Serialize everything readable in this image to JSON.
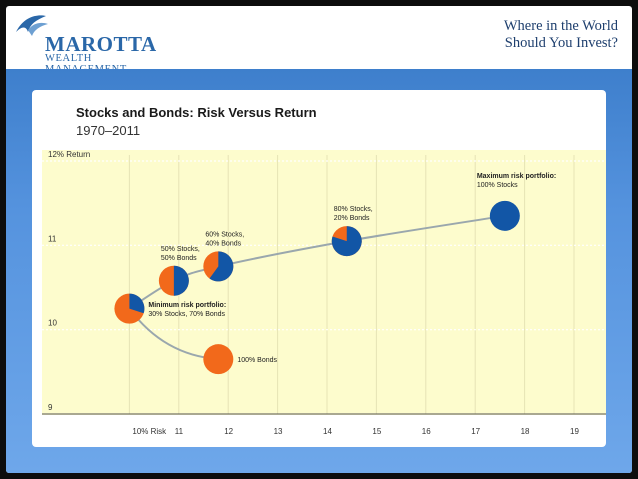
{
  "header": {
    "brand": "MAROTTA",
    "brand_sub": "WEALTH MANAGEMENT",
    "headline_line1": "Where in the World",
    "headline_line2": "Should You Invest?"
  },
  "colors": {
    "stocks": "#1256a6",
    "bonds": "#f2691b",
    "plot_bg": "#fdfccd",
    "curve": "#9aa7ad",
    "brand": "#2a67a8"
  },
  "chart_data": {
    "type": "scatter",
    "title": "Stocks and Bonds: Risk Versus Return",
    "subtitle": "1970–2011",
    "xlim": [
      9,
      19
    ],
    "ylim": [
      9,
      12
    ],
    "x_ticks": [
      {
        "value": 10,
        "label": "10% Risk"
      },
      {
        "value": 11,
        "label": "11"
      },
      {
        "value": 12,
        "label": "12"
      },
      {
        "value": 13,
        "label": "13"
      },
      {
        "value": 14,
        "label": "14"
      },
      {
        "value": 15,
        "label": "15"
      },
      {
        "value": 16,
        "label": "16"
      },
      {
        "value": 17,
        "label": "17"
      },
      {
        "value": 18,
        "label": "18"
      },
      {
        "value": 19,
        "label": "19"
      }
    ],
    "y_ticks": [
      {
        "value": 9,
        "label": "9"
      },
      {
        "value": 10,
        "label": "10"
      },
      {
        "value": 11,
        "label": "11"
      },
      {
        "value": 12,
        "label": "12% Return"
      }
    ],
    "portfolios": [
      {
        "name": "100% Bonds",
        "risk": 11.8,
        "return": 9.65,
        "stocks_pct": 0,
        "label_lines": [
          "100% Bonds"
        ],
        "label_pos": "right"
      },
      {
        "name": "Minimum risk portfolio",
        "risk": 10.0,
        "return": 10.25,
        "stocks_pct": 30,
        "label_lines": [
          "Minimum  risk portfolio:",
          "30% Stocks, 70% Bonds"
        ],
        "label_pos": "right",
        "label_bold_first": true
      },
      {
        "name": "50% Stocks, 50% Bonds",
        "risk": 10.9,
        "return": 10.58,
        "stocks_pct": 50,
        "label_lines": [
          "50% Stocks,",
          "50% Bonds"
        ],
        "label_pos": "above"
      },
      {
        "name": "60% Stocks, 40% Bonds",
        "risk": 11.8,
        "return": 10.75,
        "stocks_pct": 60,
        "label_lines": [
          "60% Stocks,",
          "40% Bonds"
        ],
        "label_pos": "above"
      },
      {
        "name": "80% Stocks, 20% Bonds",
        "risk": 14.4,
        "return": 11.05,
        "stocks_pct": 80,
        "label_lines": [
          "80% Stocks,",
          "20% Bonds"
        ],
        "label_pos": "above"
      },
      {
        "name": "Maximum risk portfolio",
        "risk": 17.6,
        "return": 11.35,
        "stocks_pct": 100,
        "label_lines": [
          "Maximum  risk portfolio:",
          "100% Stocks"
        ],
        "label_pos": "above",
        "label_bold_first": true
      }
    ],
    "frontier_upper": [
      [
        10.0,
        10.25
      ],
      [
        10.9,
        10.58
      ],
      [
        11.8,
        10.75
      ],
      [
        14.4,
        11.05
      ],
      [
        17.6,
        11.35
      ]
    ],
    "frontier_lower": [
      [
        10.0,
        10.25
      ],
      [
        11.8,
        9.65
      ]
    ],
    "grid": true
  }
}
